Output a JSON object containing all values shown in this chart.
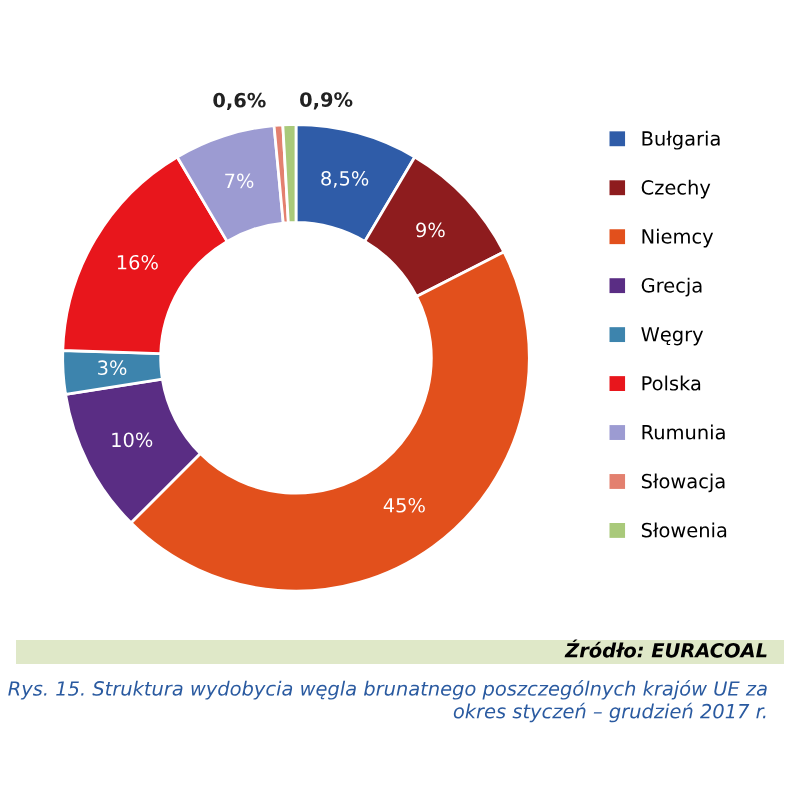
{
  "chart_data": {
    "type": "donut",
    "categories": [
      "Bułgaria",
      "Czechy",
      "Niemcy",
      "Grecja",
      "Węgry",
      "Polska",
      "Rumunia",
      "Słowacja",
      "Słowenia"
    ],
    "values": [
      8.5,
      9,
      45,
      10,
      3,
      16,
      7,
      0.6,
      0.9
    ],
    "value_labels": [
      "8,5%",
      "9%",
      "45%",
      "10%",
      "3%",
      "16%",
      "7%",
      "0,6%",
      "0,9%"
    ],
    "colors": [
      "#2f5ca8",
      "#8e1c1e",
      "#e2501c",
      "#5a2d84",
      "#3d84ad",
      "#e8161c",
      "#9c9bd2",
      "#e3806f",
      "#a9c97a"
    ],
    "legend": "right",
    "annotations": [
      "Źródło: EURACOAL",
      "Rys. 15. Struktura wydobycia węgla brunatnego poszczególnych krajów UE za okres styczeń – grudzień 2017 r."
    ]
  }
}
